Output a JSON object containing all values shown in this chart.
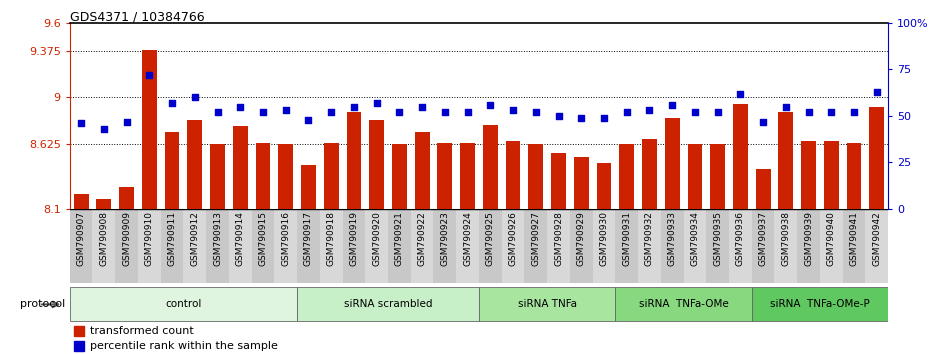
{
  "title": "GDS4371 / 10384766",
  "samples": [
    "GSM790907",
    "GSM790908",
    "GSM790909",
    "GSM790910",
    "GSM790911",
    "GSM790912",
    "GSM790913",
    "GSM790914",
    "GSM790915",
    "GSM790916",
    "GSM790917",
    "GSM790918",
    "GSM790919",
    "GSM790920",
    "GSM790921",
    "GSM790922",
    "GSM790923",
    "GSM790924",
    "GSM790925",
    "GSM790926",
    "GSM790927",
    "GSM790928",
    "GSM790929",
    "GSM790930",
    "GSM790931",
    "GSM790932",
    "GSM790933",
    "GSM790934",
    "GSM790935",
    "GSM790936",
    "GSM790937",
    "GSM790938",
    "GSM790939",
    "GSM790940",
    "GSM790941",
    "GSM790942"
  ],
  "bar_values": [
    8.22,
    8.18,
    8.28,
    9.38,
    8.72,
    8.82,
    8.62,
    8.77,
    8.63,
    8.62,
    8.45,
    8.63,
    8.88,
    8.82,
    8.62,
    8.72,
    8.63,
    8.63,
    8.78,
    8.65,
    8.62,
    8.55,
    8.52,
    8.47,
    8.62,
    8.66,
    8.83,
    8.62,
    8.62,
    8.95,
    8.42,
    8.88,
    8.65,
    8.65,
    8.63,
    8.92
  ],
  "blue_values": [
    46,
    43,
    47,
    72,
    57,
    60,
    52,
    55,
    52,
    53,
    48,
    52,
    55,
    57,
    52,
    55,
    52,
    52,
    56,
    53,
    52,
    50,
    49,
    49,
    52,
    53,
    56,
    52,
    52,
    62,
    47,
    55,
    52,
    52,
    52,
    63
  ],
  "groups": [
    {
      "label": "control",
      "start": 0,
      "end": 10,
      "color": "#e0f5e0"
    },
    {
      "label": "siRNA scrambled",
      "start": 10,
      "end": 18,
      "color": "#c8f0c8"
    },
    {
      "label": "siRNA TNFa",
      "start": 18,
      "end": 24,
      "color": "#a8e6a0"
    },
    {
      "label": "siRNA  TNFa-OMe",
      "start": 24,
      "end": 30,
      "color": "#88d880"
    },
    {
      "label": "siRNA  TNFa-OMe-P",
      "start": 30,
      "end": 36,
      "color": "#60c860"
    }
  ],
  "ymin": 8.1,
  "ymax": 9.6,
  "ylim_left": [
    8.1,
    9.6
  ],
  "ylim_right": [
    0,
    100
  ],
  "yticks_left": [
    8.1,
    8.625,
    9.0,
    9.375,
    9.6
  ],
  "ytick_labels_left": [
    "8.1",
    "8.625",
    "9",
    "9.375",
    "9.6"
  ],
  "yticks_right": [
    0,
    25,
    50,
    75,
    100
  ],
  "ytick_labels_right": [
    "0",
    "25",
    "50",
    "75",
    "100%"
  ],
  "bar_color": "#cc2200",
  "dot_color": "#0000cc",
  "grid_ticks": [
    8.625,
    9.0,
    9.375
  ],
  "legend_items": [
    {
      "label": "transformed count",
      "color": "#cc2200"
    },
    {
      "label": "percentile rank within the sample",
      "color": "#0000cc"
    }
  ]
}
